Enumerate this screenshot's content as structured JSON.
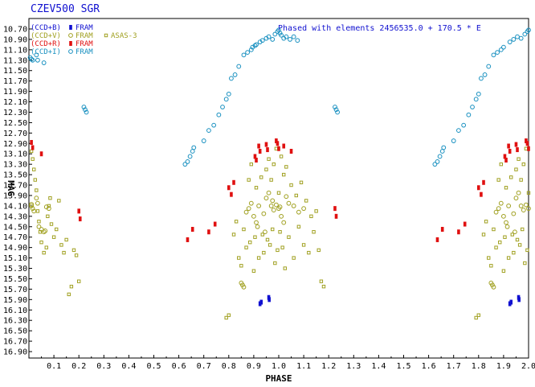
{
  "chart_data": {
    "type": "scatter",
    "title": "CZEV500 SGR",
    "annotation": "Phased with elements 2456535.0 + 170.5 * E",
    "xlabel": "PHASE",
    "ylabel": "MAG",
    "xlim": [
      0.0,
      2.0
    ],
    "ylim": [
      16.9,
      10.7
    ],
    "y_inverted": true,
    "grid": false,
    "legend_position": "top-left",
    "x_ticks": [
      "0.1",
      "0.2",
      "0.3",
      "0.4",
      "0.5",
      "0.6",
      "0.7",
      "0.8",
      "0.9",
      "1.0",
      "1.1",
      "1.2",
      "1.3",
      "1.4",
      "1.5",
      "1.6",
      "1.7",
      "1.8",
      "1.9",
      "2.0"
    ],
    "y_ticks": [
      "10.70",
      "10.90",
      "11.10",
      "11.30",
      "11.50",
      "11.70",
      "11.90",
      "12.10",
      "12.30",
      "12.50",
      "12.70",
      "12.90",
      "13.10",
      "13.30",
      "13.50",
      "13.70",
      "13.90",
      "14.10",
      "14.30",
      "14.50",
      "14.70",
      "14.90",
      "15.10",
      "15.30",
      "15.50",
      "15.70",
      "15.90",
      "16.10",
      "16.30",
      "16.50",
      "16.70",
      "16.90"
    ],
    "series": [
      {
        "name": "(CCD+B)",
        "source": "FRAM",
        "color": "#1010d0",
        "marker": "filled-square",
        "points": [
          [
            0.925,
            15.98
          ],
          [
            0.93,
            15.95
          ],
          [
            0.96,
            15.86
          ],
          [
            0.962,
            15.9
          ],
          [
            1.925,
            15.98
          ],
          [
            1.93,
            15.95
          ],
          [
            1.96,
            15.86
          ],
          [
            1.962,
            15.9
          ]
        ]
      },
      {
        "name": "(CCD+V)",
        "source": "FRAM",
        "color": "#a0a020",
        "marker": "open-circle",
        "points": [
          [
            0.01,
            14.07
          ],
          [
            0.01,
            14.1
          ],
          [
            0.015,
            14.15
          ],
          [
            0.02,
            14.2
          ],
          [
            0.03,
            13.95
          ],
          [
            0.035,
            14.05
          ],
          [
            0.04,
            14.5
          ],
          [
            0.05,
            14.55
          ],
          [
            0.06,
            14.6
          ],
          [
            0.065,
            14.58
          ],
          [
            0.07,
            14.12
          ],
          [
            0.08,
            14.15
          ],
          [
            0.85,
            15.58
          ],
          [
            0.855,
            15.62
          ],
          [
            0.86,
            15.66
          ],
          [
            0.87,
            14.22
          ],
          [
            0.88,
            14.15
          ],
          [
            0.89,
            14.05
          ],
          [
            0.9,
            14.3
          ],
          [
            0.91,
            14.42
          ],
          [
            0.915,
            14.5
          ],
          [
            0.92,
            14.1
          ],
          [
            0.94,
            14.25
          ],
          [
            0.945,
            14.6
          ],
          [
            0.95,
            13.95
          ],
          [
            0.96,
            13.85
          ],
          [
            0.97,
            14.1
          ],
          [
            0.975,
            14.0
          ],
          [
            0.98,
            14.18
          ],
          [
            0.99,
            14.08
          ],
          [
            1.0,
            14.15
          ],
          [
            1.005,
            14.12
          ],
          [
            1.01,
            14.3
          ],
          [
            1.02,
            14.42
          ],
          [
            1.03,
            13.92
          ],
          [
            1.04,
            14.05
          ],
          [
            1.06,
            14.1
          ],
          [
            1.08,
            14.22
          ],
          [
            1.1,
            14.15
          ],
          [
            1.85,
            15.58
          ],
          [
            1.855,
            15.62
          ],
          [
            1.86,
            15.66
          ],
          [
            1.87,
            14.22
          ],
          [
            1.88,
            14.15
          ],
          [
            1.89,
            14.05
          ],
          [
            1.9,
            14.3
          ],
          [
            1.91,
            14.42
          ],
          [
            1.915,
            14.5
          ],
          [
            1.92,
            14.1
          ],
          [
            1.94,
            14.25
          ],
          [
            1.945,
            14.6
          ],
          [
            1.95,
            13.95
          ],
          [
            1.96,
            13.85
          ],
          [
            1.97,
            14.1
          ],
          [
            1.98,
            14.18
          ],
          [
            1.99,
            14.08
          ],
          [
            2.0,
            14.15
          ]
        ]
      },
      {
        "name": "ASAS-3",
        "source": "",
        "color": "#a0a020",
        "marker": "open-square",
        "points": [
          [
            0.01,
            13.05
          ],
          [
            0.015,
            13.2
          ],
          [
            0.02,
            13.4
          ],
          [
            0.025,
            13.6
          ],
          [
            0.03,
            13.8
          ],
          [
            0.035,
            14.2
          ],
          [
            0.04,
            14.4
          ],
          [
            0.045,
            14.6
          ],
          [
            0.05,
            14.8
          ],
          [
            0.06,
            15.0
          ],
          [
            0.07,
            14.9
          ],
          [
            0.075,
            14.3
          ],
          [
            0.08,
            14.1
          ],
          [
            0.085,
            13.95
          ],
          [
            0.09,
            14.45
          ],
          [
            0.1,
            14.7
          ],
          [
            0.11,
            14.55
          ],
          [
            0.12,
            14.0
          ],
          [
            0.13,
            14.85
          ],
          [
            0.14,
            15.0
          ],
          [
            0.15,
            14.75
          ],
          [
            0.16,
            15.8
          ],
          [
            0.17,
            15.65
          ],
          [
            0.18,
            14.95
          ],
          [
            0.19,
            15.05
          ],
          [
            0.2,
            15.55
          ],
          [
            0.79,
            16.25
          ],
          [
            0.8,
            16.2
          ],
          [
            0.82,
            14.65
          ],
          [
            0.83,
            14.4
          ],
          [
            0.84,
            15.1
          ],
          [
            0.85,
            15.25
          ],
          [
            0.86,
            14.55
          ],
          [
            0.87,
            14.9
          ],
          [
            0.88,
            13.6
          ],
          [
            0.885,
            14.8
          ],
          [
            0.89,
            13.3
          ],
          [
            0.9,
            15.35
          ],
          [
            0.905,
            14.7
          ],
          [
            0.91,
            13.75
          ],
          [
            0.92,
            15.1
          ],
          [
            0.93,
            13.55
          ],
          [
            0.935,
            14.65
          ],
          [
            0.94,
            15.0
          ],
          [
            0.95,
            13.4
          ],
          [
            0.955,
            14.75
          ],
          [
            0.96,
            13.2
          ],
          [
            0.965,
            14.85
          ],
          [
            0.97,
            13.6
          ],
          [
            0.975,
            14.55
          ],
          [
            0.98,
            13.3
          ],
          [
            0.985,
            15.2
          ],
          [
            0.99,
            13.0
          ],
          [
            0.995,
            14.95
          ],
          [
            1.0,
            13.85
          ],
          [
            1.005,
            14.6
          ],
          [
            1.01,
            13.15
          ],
          [
            1.015,
            14.9
          ],
          [
            1.02,
            13.5
          ],
          [
            1.025,
            15.3
          ],
          [
            1.03,
            13.35
          ],
          [
            1.04,
            14.7
          ],
          [
            1.05,
            13.7
          ],
          [
            1.06,
            15.1
          ],
          [
            1.07,
            13.9
          ],
          [
            1.08,
            14.5
          ],
          [
            1.09,
            13.65
          ],
          [
            1.1,
            14.85
          ],
          [
            1.11,
            14.0
          ],
          [
            1.12,
            15.0
          ],
          [
            1.13,
            14.3
          ],
          [
            1.14,
            14.6
          ],
          [
            1.15,
            14.2
          ],
          [
            1.16,
            14.95
          ],
          [
            1.17,
            15.55
          ],
          [
            1.18,
            15.65
          ],
          [
            1.79,
            16.25
          ],
          [
            1.8,
            16.2
          ],
          [
            1.82,
            14.65
          ],
          [
            1.83,
            14.4
          ],
          [
            1.84,
            15.1
          ],
          [
            1.85,
            15.25
          ],
          [
            1.86,
            14.55
          ],
          [
            1.87,
            14.9
          ],
          [
            1.88,
            13.6
          ],
          [
            1.885,
            14.8
          ],
          [
            1.89,
            13.3
          ],
          [
            1.9,
            15.35
          ],
          [
            1.905,
            14.7
          ],
          [
            1.91,
            13.75
          ],
          [
            1.92,
            15.1
          ],
          [
            1.93,
            13.55
          ],
          [
            1.935,
            14.65
          ],
          [
            1.94,
            15.0
          ],
          [
            1.95,
            13.4
          ],
          [
            1.955,
            14.75
          ],
          [
            1.96,
            13.2
          ],
          [
            1.965,
            14.85
          ],
          [
            1.97,
            13.6
          ],
          [
            1.975,
            14.55
          ],
          [
            1.98,
            13.3
          ],
          [
            1.985,
            15.2
          ],
          [
            1.99,
            13.0
          ],
          [
            1.995,
            14.95
          ],
          [
            2.0,
            13.85
          ]
        ]
      },
      {
        "name": "(CCD+R)",
        "source": "FRAM",
        "color": "#e01010",
        "marker": "filled-square",
        "points": [
          [
            0.01,
            12.88
          ],
          [
            0.015,
            12.98
          ],
          [
            0.05,
            13.1
          ],
          [
            0.2,
            14.2
          ],
          [
            0.205,
            14.35
          ],
          [
            0.635,
            14.75
          ],
          [
            0.655,
            14.55
          ],
          [
            0.72,
            14.6
          ],
          [
            0.745,
            14.45
          ],
          [
            0.8,
            13.75
          ],
          [
            0.81,
            13.88
          ],
          [
            0.82,
            13.65
          ],
          [
            0.905,
            13.15
          ],
          [
            0.91,
            13.22
          ],
          [
            0.92,
            12.95
          ],
          [
            0.925,
            13.05
          ],
          [
            0.95,
            12.92
          ],
          [
            0.955,
            13.02
          ],
          [
            0.99,
            12.85
          ],
          [
            0.995,
            12.9
          ],
          [
            1.0,
            13.0
          ],
          [
            1.02,
            12.95
          ],
          [
            1.05,
            13.05
          ],
          [
            1.225,
            14.15
          ],
          [
            1.23,
            14.3
          ],
          [
            1.635,
            14.75
          ],
          [
            1.655,
            14.55
          ],
          [
            1.72,
            14.6
          ],
          [
            1.745,
            14.45
          ],
          [
            1.8,
            13.75
          ],
          [
            1.81,
            13.88
          ],
          [
            1.82,
            13.65
          ],
          [
            1.905,
            13.15
          ],
          [
            1.91,
            13.22
          ],
          [
            1.92,
            12.95
          ],
          [
            1.925,
            13.05
          ],
          [
            1.95,
            12.92
          ],
          [
            1.955,
            13.02
          ],
          [
            1.99,
            12.85
          ],
          [
            1.995,
            12.9
          ],
          [
            2.0,
            13.0
          ]
        ]
      },
      {
        "name": "(CCD+I)",
        "source": "FRAM",
        "color": "#1890c0",
        "marker": "open-circle",
        "points": [
          [
            0.005,
            11.25
          ],
          [
            0.01,
            11.28
          ],
          [
            0.015,
            11.3
          ],
          [
            0.03,
            11.2
          ],
          [
            0.035,
            11.3
          ],
          [
            0.06,
            11.35
          ],
          [
            0.22,
            12.2
          ],
          [
            0.225,
            12.25
          ],
          [
            0.23,
            12.3
          ],
          [
            0.625,
            13.3
          ],
          [
            0.635,
            13.25
          ],
          [
            0.645,
            13.15
          ],
          [
            0.655,
            13.05
          ],
          [
            0.66,
            12.98
          ],
          [
            0.7,
            12.85
          ],
          [
            0.72,
            12.65
          ],
          [
            0.74,
            12.55
          ],
          [
            0.76,
            12.35
          ],
          [
            0.775,
            12.2
          ],
          [
            0.79,
            12.05
          ],
          [
            0.8,
            11.95
          ],
          [
            0.81,
            11.65
          ],
          [
            0.825,
            11.58
          ],
          [
            0.84,
            11.42
          ],
          [
            0.86,
            11.2
          ],
          [
            0.875,
            11.15
          ],
          [
            0.89,
            11.1
          ],
          [
            0.895,
            11.05
          ],
          [
            0.905,
            11.02
          ],
          [
            0.91,
            11.0
          ],
          [
            0.925,
            10.95
          ],
          [
            0.935,
            10.92
          ],
          [
            0.95,
            10.88
          ],
          [
            0.96,
            10.85
          ],
          [
            0.975,
            10.9
          ],
          [
            0.985,
            10.8
          ],
          [
            0.995,
            10.75
          ],
          [
            1.0,
            10.72
          ],
          [
            1.005,
            10.78
          ],
          [
            1.01,
            10.82
          ],
          [
            1.02,
            10.88
          ],
          [
            1.03,
            10.85
          ],
          [
            1.045,
            10.9
          ],
          [
            1.06,
            10.85
          ],
          [
            1.075,
            10.92
          ],
          [
            1.225,
            12.2
          ],
          [
            1.23,
            12.25
          ],
          [
            1.235,
            12.3
          ],
          [
            1.625,
            13.3
          ],
          [
            1.635,
            13.25
          ],
          [
            1.645,
            13.15
          ],
          [
            1.655,
            13.05
          ],
          [
            1.66,
            12.98
          ],
          [
            1.7,
            12.85
          ],
          [
            1.72,
            12.65
          ],
          [
            1.74,
            12.55
          ],
          [
            1.76,
            12.35
          ],
          [
            1.775,
            12.2
          ],
          [
            1.79,
            12.05
          ],
          [
            1.8,
            11.95
          ],
          [
            1.81,
            11.65
          ],
          [
            1.825,
            11.58
          ],
          [
            1.84,
            11.42
          ],
          [
            1.86,
            11.2
          ],
          [
            1.875,
            11.15
          ],
          [
            1.89,
            11.1
          ],
          [
            1.9,
            11.05
          ],
          [
            1.925,
            10.95
          ],
          [
            1.94,
            10.9
          ],
          [
            1.955,
            10.85
          ],
          [
            1.97,
            10.88
          ],
          [
            1.985,
            10.8
          ],
          [
            1.995,
            10.75
          ],
          [
            2.0,
            10.72
          ]
        ]
      }
    ]
  }
}
